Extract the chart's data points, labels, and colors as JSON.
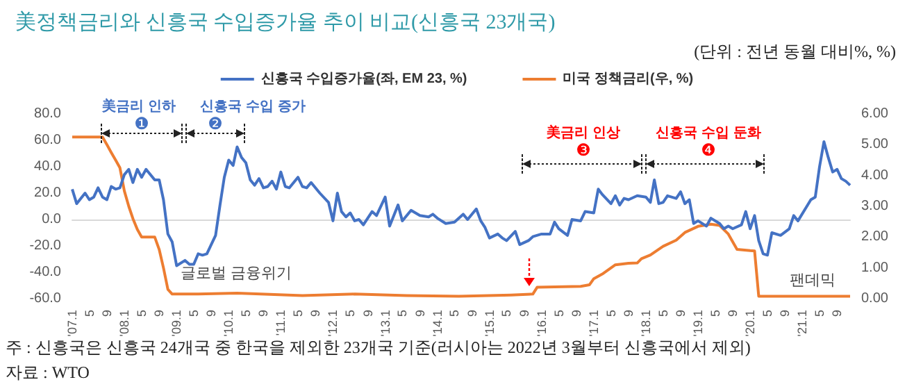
{
  "chart_data": {
    "type": "line",
    "title": "美정책금리와 신흥국 수입증가율 추이 비교(신흥국 23개국)",
    "subtitle": "(단위 : 전년 동월 대비%, %)",
    "xlim": [
      "2007-01",
      "2021-12"
    ],
    "xticks": [
      {
        "value": "2007-01",
        "label": "'07.1"
      },
      {
        "value": "2007-05",
        "label": "5"
      },
      {
        "value": "2007-09",
        "label": "9"
      },
      {
        "value": "2008-01",
        "label": "'08.1"
      },
      {
        "value": "2008-05",
        "label": "5"
      },
      {
        "value": "2008-09",
        "label": "9"
      },
      {
        "value": "2009-01",
        "label": "'09.1"
      },
      {
        "value": "2009-05",
        "label": "5"
      },
      {
        "value": "2009-09",
        "label": "9"
      },
      {
        "value": "2010-01",
        "label": "'10.1"
      },
      {
        "value": "2010-05",
        "label": "5"
      },
      {
        "value": "2010-09",
        "label": "9"
      },
      {
        "value": "2011-01",
        "label": "'11.1"
      },
      {
        "value": "2011-05",
        "label": "5"
      },
      {
        "value": "2011-09",
        "label": "9"
      },
      {
        "value": "2012-01",
        "label": "'12.1"
      },
      {
        "value": "2012-05",
        "label": "5"
      },
      {
        "value": "2012-09",
        "label": "9"
      },
      {
        "value": "2013-01",
        "label": "'13.1"
      },
      {
        "value": "2013-05",
        "label": "5"
      },
      {
        "value": "2013-09",
        "label": "9"
      },
      {
        "value": "2014-01",
        "label": "'14.1"
      },
      {
        "value": "2014-05",
        "label": "5"
      },
      {
        "value": "2014-09",
        "label": "9"
      },
      {
        "value": "2015-01",
        "label": "'15.1"
      },
      {
        "value": "2015-05",
        "label": "5"
      },
      {
        "value": "2015-09",
        "label": "9"
      },
      {
        "value": "2016-01",
        "label": "'16.1"
      },
      {
        "value": "2016-05",
        "label": "5"
      },
      {
        "value": "2016-09",
        "label": "9"
      },
      {
        "value": "2017-01",
        "label": "'17.1"
      },
      {
        "value": "2017-05",
        "label": "5"
      },
      {
        "value": "2017-09",
        "label": "9"
      },
      {
        "value": "2018-01",
        "label": "'18.1"
      },
      {
        "value": "2018-05",
        "label": "5"
      },
      {
        "value": "2018-09",
        "label": "9"
      },
      {
        "value": "2019-01",
        "label": "'19.1"
      },
      {
        "value": "2019-05",
        "label": "5"
      },
      {
        "value": "2019-09",
        "label": "9"
      },
      {
        "value": "2020-01",
        "label": "'20.1"
      },
      {
        "value": "2020-05",
        "label": "5"
      },
      {
        "value": "2020-09",
        "label": "9"
      },
      {
        "value": "2021-01",
        "label": "'21.1"
      },
      {
        "value": "2021-05",
        "label": "5"
      },
      {
        "value": "2021-09",
        "label": "9"
      }
    ],
    "ylim": [
      -60,
      80
    ],
    "yticks": [
      {
        "value": -60,
        "label": "-60.0"
      },
      {
        "value": -40,
        "label": "-40.0"
      },
      {
        "value": -20,
        "label": "-20.0"
      },
      {
        "value": 0,
        "label": "0.0"
      },
      {
        "value": 20,
        "label": "20.0"
      },
      {
        "value": 40,
        "label": "40.0"
      },
      {
        "value": 60,
        "label": "60.0"
      },
      {
        "value": 80,
        "label": "80.0"
      }
    ],
    "y2lim": [
      0,
      6
    ],
    "y2ticks": [
      {
        "value": 0,
        "label": "0.00"
      },
      {
        "value": 1,
        "label": "1.00"
      },
      {
        "value": 2,
        "label": "2.00"
      },
      {
        "value": 3,
        "label": "3.00"
      },
      {
        "value": 4,
        "label": "4.00"
      },
      {
        "value": 5,
        "label": "5.00"
      },
      {
        "value": 6,
        "label": "6.00"
      }
    ],
    "legend": "top",
    "marker": "none",
    "series": [
      {
        "name": "신흥국 수입증가율(좌, EM 23, %)",
        "color": "#4472c4",
        "x": [
          "2007-01",
          "2007-02",
          "2007-04",
          "2007-05",
          "2007-06",
          "2007-07",
          "2007-08",
          "2007-09",
          "2007-10",
          "2007-11",
          "2007-12",
          "2008-01",
          "2008-02",
          "2008-03",
          "2008-04",
          "2008-05",
          "2008-06",
          "2008-08",
          "2008-09",
          "2008-10",
          "2008-11",
          "2008-12",
          "2009-01",
          "2009-03",
          "2009-04",
          "2009-05",
          "2009-06",
          "2009-07",
          "2009-08",
          "2009-10",
          "2009-11",
          "2009-12",
          "2010-01",
          "2010-02",
          "2010-03",
          "2010-04",
          "2010-05",
          "2010-06",
          "2010-07",
          "2010-08",
          "2010-09",
          "2010-10",
          "2010-11",
          "2010-12",
          "2011-01",
          "2011-02",
          "2011-03",
          "2011-05",
          "2011-06",
          "2011-07",
          "2011-08",
          "2011-10",
          "2011-12",
          "2012-01",
          "2012-02",
          "2012-03",
          "2012-04",
          "2012-05",
          "2012-06",
          "2012-07",
          "2012-08",
          "2012-10",
          "2012-11",
          "2013-01",
          "2013-02",
          "2013-04",
          "2013-05",
          "2013-07",
          "2013-09",
          "2013-11",
          "2013-12",
          "2014-01",
          "2014-03",
          "2014-05",
          "2014-07",
          "2014-08",
          "2014-10",
          "2014-11",
          "2014-12",
          "2015-01",
          "2015-03",
          "2015-04",
          "2015-05",
          "2015-07",
          "2015-08",
          "2015-10",
          "2015-11",
          "2016-01",
          "2016-03",
          "2016-04",
          "2016-05",
          "2016-07",
          "2016-08",
          "2016-10",
          "2016-11",
          "2017-01",
          "2017-02",
          "2017-03",
          "2017-05",
          "2017-06",
          "2017-07",
          "2017-08",
          "2017-09",
          "2017-11",
          "2018-01",
          "2018-02",
          "2018-03",
          "2018-04",
          "2018-05",
          "2018-06",
          "2018-08",
          "2018-09",
          "2018-10",
          "2018-11",
          "2018-12",
          "2019-01",
          "2019-03",
          "2019-04",
          "2019-06",
          "2019-07",
          "2019-08",
          "2019-09",
          "2019-11",
          "2019-12",
          "2020-01",
          "2020-02",
          "2020-03",
          "2020-04",
          "2020-05",
          "2020-06",
          "2020-08",
          "2020-10",
          "2020-11",
          "2020-12",
          "2021-02",
          "2021-03",
          "2021-04",
          "2021-05",
          "2021-06",
          "2021-07",
          "2021-08",
          "2021-09",
          "2021-10",
          "2021-11",
          "2021-12"
        ],
        "values": [
          23,
          12,
          20,
          15,
          17,
          24,
          17,
          15,
          25,
          23,
          24,
          34,
          38,
          28,
          38,
          32,
          38,
          30,
          30,
          15,
          -11,
          -17,
          -35,
          -31,
          -34,
          -34,
          -26,
          -27,
          -26,
          -12,
          11,
          32,
          45,
          41,
          55,
          47,
          43,
          30,
          26,
          31,
          24,
          25,
          29,
          23,
          36,
          25,
          24,
          32,
          25,
          24,
          28,
          20,
          13,
          -1,
          20,
          6,
          2,
          5,
          -1,
          0,
          -4,
          6,
          3,
          17,
          -5,
          11,
          -1,
          7,
          3,
          2,
          4,
          1,
          -3,
          -2,
          4,
          0,
          8,
          -1,
          -6,
          -14,
          -11,
          -14,
          -16,
          -9,
          -19,
          -16,
          -13,
          -11,
          -11,
          -2,
          -7,
          -12,
          0,
          -1,
          6,
          5,
          23,
          19,
          12,
          18,
          11,
          16,
          15,
          18,
          17,
          13,
          30,
          12,
          13,
          18,
          16,
          21,
          12,
          15,
          -3,
          -1,
          -5,
          1,
          -3,
          -7,
          -5,
          -7,
          -4,
          6,
          -7,
          3,
          -16,
          -26,
          -27,
          -10,
          -12,
          -7,
          3,
          -1,
          10,
          15,
          17,
          40,
          59,
          47,
          36,
          38,
          31,
          29,
          26
        ]
      },
      {
        "name": "미국 정책금리(우, %)",
        "color": "#ed7d31",
        "axis": "y2",
        "x": [
          "2007-01",
          "2007-08",
          "2007-09",
          "2007-10",
          "2007-11",
          "2007-12",
          "2008-01",
          "2008-02",
          "2008-03",
          "2008-04",
          "2008-05",
          "2008-08",
          "2008-09",
          "2008-10",
          "2008-11",
          "2008-12",
          "2009-06",
          "2010-03",
          "2011-06",
          "2012-06",
          "2013-06",
          "2014-06",
          "2015-06",
          "2015-11",
          "2015-12",
          "2016-10",
          "2016-12",
          "2017-01",
          "2017-03",
          "2017-06",
          "2017-09",
          "2017-11",
          "2017-12",
          "2018-02",
          "2018-05",
          "2018-08",
          "2018-10",
          "2019-01",
          "2019-04",
          "2019-06",
          "2019-08",
          "2019-10",
          "2020-01",
          "2020-02",
          "2020-03",
          "2020-06",
          "2021-12"
        ],
        "values": [
          5.25,
          5.25,
          5.0,
          4.75,
          4.5,
          4.25,
          3.5,
          3.0,
          2.6,
          2.25,
          2.0,
          2.0,
          1.6,
          1.0,
          0.3,
          0.15,
          0.15,
          0.18,
          0.1,
          0.15,
          0.1,
          0.08,
          0.12,
          0.15,
          0.37,
          0.4,
          0.45,
          0.65,
          0.8,
          1.1,
          1.15,
          1.16,
          1.3,
          1.42,
          1.7,
          1.9,
          2.15,
          2.35,
          2.42,
          2.38,
          2.1,
          1.6,
          1.56,
          1.55,
          0.08,
          0.08,
          0.08
        ]
      }
    ],
    "annotations": [
      "美금리 인하",
      "❶",
      "신흥국 수입 증가",
      "❷",
      "美금리 인상",
      "❸",
      "신흥국 수입 둔화",
      "❹",
      "글로벌 금융위기",
      "팬데믹",
      "주 : 신흥국은 신흥국 24개국 중 한국을 제외한 23개국 기준(러시아는 2022년 3월부터 신흥국에서 제외)",
      "자료 : WTO"
    ]
  }
}
